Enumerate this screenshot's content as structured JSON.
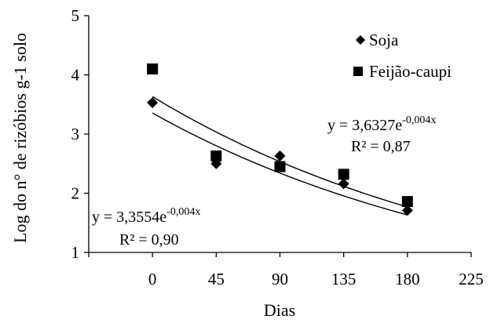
{
  "chart_data": {
    "type": "scatter",
    "xlabel": "Dias",
    "ylabel": "Log do n° de rizóbios g-1 solo",
    "xlim": [
      -45,
      225
    ],
    "ylim": [
      1,
      5
    ],
    "xticks": [
      0,
      45,
      90,
      135,
      180,
      225
    ],
    "yticks": [
      1,
      2,
      3,
      4,
      5
    ],
    "grid": false,
    "legend_position": "top-right",
    "series": [
      {
        "name": "Soja",
        "marker": "diamond",
        "x": [
          0,
          45,
          90,
          135,
          180
        ],
        "y": [
          3.53,
          2.5,
          2.63,
          2.16,
          1.71
        ],
        "trendline": {
          "a": 3.6327,
          "b": -0.004,
          "equation": "y = 3,6327e",
          "exponent": "-0,004x",
          "r2": "R² = 0,87"
        }
      },
      {
        "name": "Feijão-caupi",
        "marker": "square",
        "x": [
          0,
          45,
          90,
          135,
          180
        ],
        "y": [
          4.1,
          2.63,
          2.45,
          2.32,
          1.86
        ],
        "trendline": {
          "a": 3.3554,
          "b": -0.004,
          "equation": "y = 3,3554e",
          "exponent": "-0,004x",
          "r2": "R² = 0,90"
        }
      }
    ]
  }
}
